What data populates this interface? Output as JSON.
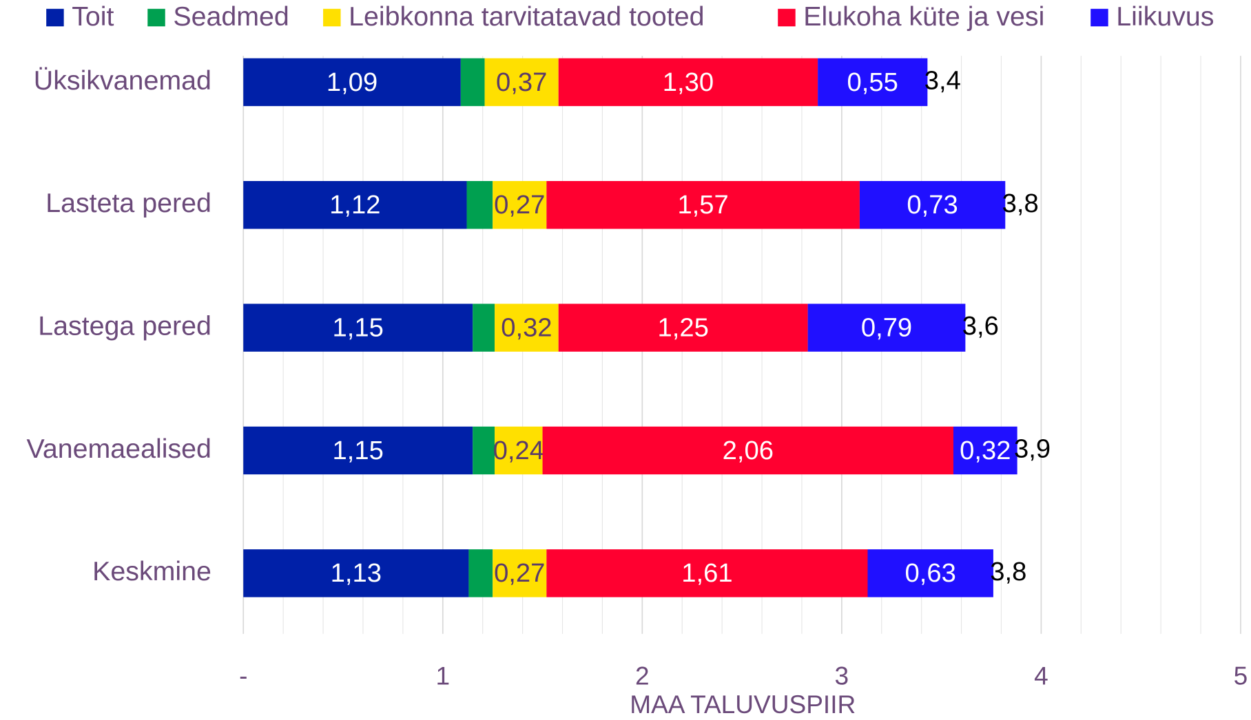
{
  "chart_data": {
    "type": "stacked_barh",
    "categories": [
      "Üksikvanemad",
      "Lasteta pered",
      "Lastega pered",
      "Vanemaealised",
      "Keskmine"
    ],
    "series": [
      {
        "name": "Toit",
        "color": "#0020a8",
        "values": [
          1.09,
          1.12,
          1.15,
          1.15,
          1.13
        ],
        "value_labels": [
          "1,09",
          "1,12",
          "1,15",
          "1,15",
          "1,13"
        ]
      },
      {
        "name": "Seadmed",
        "color": "#00a050",
        "values": [
          0.12,
          0.13,
          0.11,
          0.11,
          0.12
        ]
      },
      {
        "name": "Leibkonna tarvitatavad tooted",
        "color": "#ffe000",
        "values": [
          0.37,
          0.27,
          0.32,
          0.24,
          0.27
        ],
        "value_labels": [
          "0,37",
          "0,27",
          "0,32",
          "0,24",
          "0,27"
        ]
      },
      {
        "name": "Elukoha küte ja vesi",
        "color": "#ff0030",
        "values": [
          1.3,
          1.57,
          1.25,
          2.06,
          1.61
        ],
        "value_labels": [
          "1,30",
          "1,57",
          "1,25",
          "2,06",
          "1,61"
        ]
      },
      {
        "name": "Liikuvus",
        "color": "#2010ff",
        "values": [
          0.55,
          0.73,
          0.79,
          0.32,
          0.63
        ],
        "value_labels": [
          "0,55",
          "0,73",
          "0,79",
          "0,32",
          "0,63"
        ]
      }
    ],
    "totals": [
      3.43,
      3.82,
      3.62,
      3.88,
      3.76
    ],
    "total_labels": [
      "3,4",
      "3,8",
      "3,6",
      "3,9",
      "3,8"
    ],
    "xlabel": "MAA TALUVUSPIIR",
    "xlim": [
      0,
      5
    ],
    "xticks": [
      {
        "value": 0,
        "label": "-"
      },
      1,
      2,
      3,
      4,
      5
    ],
    "xminorticks": [
      0.2,
      0.4,
      0.6,
      0.8,
      1.2,
      1.4,
      1.6,
      1.8,
      2.2,
      2.4,
      2.6,
      2.8,
      3.2,
      3.4,
      3.6,
      3.8,
      4.2,
      4.4,
      4.6,
      4.8
    ],
    "grid": true,
    "legend": "top"
  }
}
